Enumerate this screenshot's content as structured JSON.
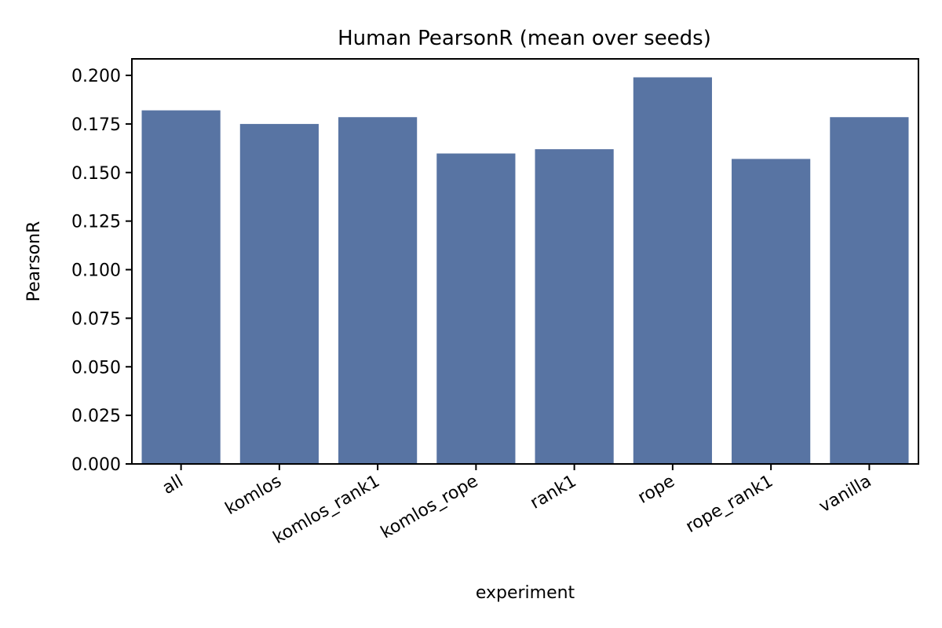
{
  "chart_data": {
    "type": "bar",
    "title": "Human PearsonR (mean over seeds)",
    "xlabel": "experiment",
    "ylabel": "PearsonR",
    "categories": [
      "all",
      "komlos",
      "komlos_rank1",
      "komlos_rope",
      "rank1",
      "rope",
      "rope_rank1",
      "vanilla"
    ],
    "values": [
      0.182,
      0.175,
      0.1785,
      0.1598,
      0.162,
      0.199,
      0.157,
      0.1785
    ],
    "ylim": [
      0,
      0.2085
    ],
    "yticks": [
      "0.000",
      "0.025",
      "0.050",
      "0.075",
      "0.100",
      "0.125",
      "0.150",
      "0.175",
      "0.200"
    ],
    "ytick_values": [
      0,
      0.025,
      0.05,
      0.075,
      0.1,
      0.125,
      0.15,
      0.175,
      0.2
    ],
    "bar_color": "#5874a3",
    "grid": false,
    "legend": "none"
  }
}
